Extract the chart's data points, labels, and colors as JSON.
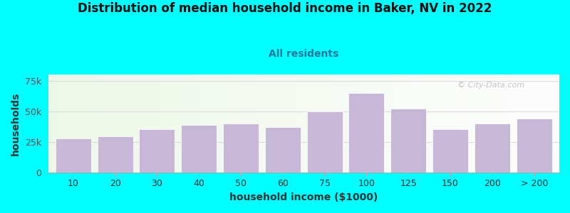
{
  "title": "Distribution of median household income in Baker, NV in 2022",
  "subtitle": "All residents",
  "xlabel": "household income ($1000)",
  "ylabel": "households",
  "background_color": "#00FFFF",
  "bar_color": "#C8B8D8",
  "categories": [
    "10",
    "20",
    "30",
    "40",
    "50",
    "60",
    "75",
    "100",
    "125",
    "150",
    "200",
    "> 200"
  ],
  "bar_centers": [
    0,
    1,
    2,
    3,
    4,
    5,
    6,
    7,
    8,
    9,
    10,
    11
  ],
  "values": [
    28000,
    29500,
    35000,
    39000,
    40000,
    37000,
    50000,
    65000,
    52000,
    35000,
    40000,
    44000
  ],
  "ylim": [
    0,
    80000
  ],
  "yticks": [
    0,
    25000,
    50000,
    75000
  ],
  "ytick_labels": [
    "0",
    "25k",
    "50k",
    "75k"
  ],
  "watermark": "© City-Data.com",
  "title_fontsize": 12,
  "subtitle_fontsize": 10,
  "subtitle_color": "#227799",
  "axis_label_fontsize": 10,
  "tick_fontsize": 9
}
